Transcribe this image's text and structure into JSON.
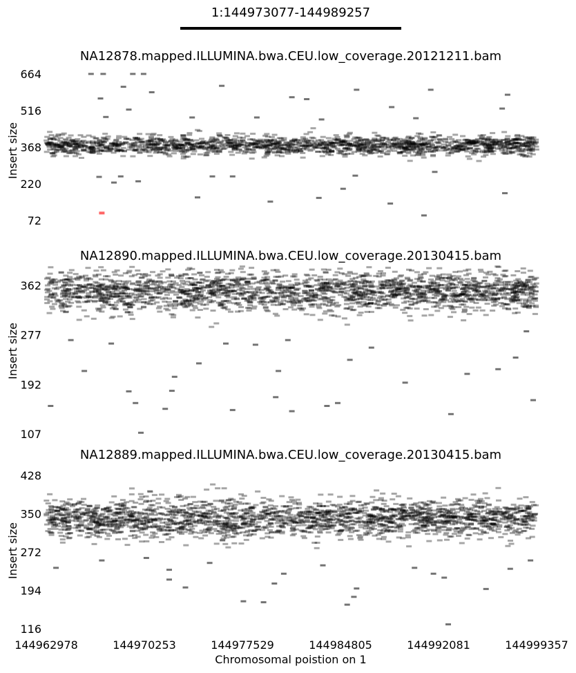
{
  "region": {
    "label": "1:144973077-144989257",
    "start": 144973077,
    "end": 144989257
  },
  "chart_data": {
    "type": "scatter",
    "xlabel": "Chromosomal poistion on 1",
    "xlim": [
      144962978,
      144999357
    ],
    "xticks": [
      144962978,
      144970253,
      144977529,
      144984805,
      144992081,
      144999357
    ],
    "xtick_labels": [
      "144962978",
      "144970253",
      "144977529",
      "144984805",
      "144992081",
      "144999357"
    ],
    "panels": [
      {
        "title": "NA12878.mapped.ILLUMINA.bwa.CEU.low_coverage.20121211.bam",
        "ylabel": "Insert size",
        "ylim": [
          72,
          664
        ],
        "yticks": [
          "72",
          "220",
          "368",
          "516",
          "664"
        ],
        "band": {
          "center": 375,
          "spread": 20
        },
        "density": 1700,
        "outliers": [
          {
            "x": 144966300,
            "y": 664
          },
          {
            "x": 144967200,
            "y": 664
          },
          {
            "x": 144969400,
            "y": 664
          },
          {
            "x": 144970200,
            "y": 664
          },
          {
            "x": 144968700,
            "y": 612
          },
          {
            "x": 144970800,
            "y": 590
          },
          {
            "x": 144967000,
            "y": 565
          },
          {
            "x": 144969100,
            "y": 520
          },
          {
            "x": 144976000,
            "y": 616
          },
          {
            "x": 144981200,
            "y": 570
          },
          {
            "x": 144982300,
            "y": 562
          },
          {
            "x": 144986000,
            "y": 600
          },
          {
            "x": 144988600,
            "y": 530
          },
          {
            "x": 144991500,
            "y": 600
          },
          {
            "x": 144997200,
            "y": 580
          },
          {
            "x": 144996800,
            "y": 524
          },
          {
            "x": 144967400,
            "y": 490
          },
          {
            "x": 144973800,
            "y": 488
          },
          {
            "x": 144978600,
            "y": 488
          },
          {
            "x": 144983400,
            "y": 480
          },
          {
            "x": 144990400,
            "y": 485
          },
          {
            "x": 144966900,
            "y": 248
          },
          {
            "x": 144968500,
            "y": 250
          },
          {
            "x": 144969800,
            "y": 230
          },
          {
            "x": 144975300,
            "y": 250
          },
          {
            "x": 144976800,
            "y": 250
          },
          {
            "x": 144985900,
            "y": 253
          },
          {
            "x": 144991800,
            "y": 268
          },
          {
            "x": 144985000,
            "y": 200
          },
          {
            "x": 144968000,
            "y": 225
          },
          {
            "x": 144974200,
            "y": 165
          },
          {
            "x": 144979600,
            "y": 148
          },
          {
            "x": 144983200,
            "y": 163
          },
          {
            "x": 144988500,
            "y": 140
          },
          {
            "x": 144997000,
            "y": 182
          },
          {
            "x": 144991000,
            "y": 92
          }
        ],
        "highlight": [
          {
            "x": 144967100,
            "y": 102,
            "color": "#ff0000"
          }
        ]
      },
      {
        "title": "NA12890.mapped.ILLUMINA.bwa.CEU.low_coverage.20130415.bam",
        "ylabel": "Insert size",
        "ylim": [
          107,
          395
        ],
        "yticks": [
          "107",
          "192",
          "277",
          "362"
        ],
        "band": {
          "center": 352,
          "spread": 18
        },
        "density": 2100,
        "outliers": [
          {
            "x": 144963300,
            "y": 155
          },
          {
            "x": 144965800,
            "y": 215
          },
          {
            "x": 144964800,
            "y": 268
          },
          {
            "x": 144967800,
            "y": 262
          },
          {
            "x": 144969100,
            "y": 180
          },
          {
            "x": 144969600,
            "y": 160
          },
          {
            "x": 144970000,
            "y": 109
          },
          {
            "x": 144972500,
            "y": 205
          },
          {
            "x": 144972300,
            "y": 181
          },
          {
            "x": 144971800,
            "y": 150
          },
          {
            "x": 144974300,
            "y": 228
          },
          {
            "x": 144976800,
            "y": 148
          },
          {
            "x": 144980000,
            "y": 170
          },
          {
            "x": 144981200,
            "y": 146
          },
          {
            "x": 144980200,
            "y": 215
          },
          {
            "x": 144983800,
            "y": 155
          },
          {
            "x": 144984600,
            "y": 160
          },
          {
            "x": 144985500,
            "y": 234
          },
          {
            "x": 144989600,
            "y": 195
          },
          {
            "x": 144993000,
            "y": 141
          },
          {
            "x": 144994200,
            "y": 210
          },
          {
            "x": 144996500,
            "y": 218
          },
          {
            "x": 144997800,
            "y": 238
          },
          {
            "x": 144999100,
            "y": 165
          },
          {
            "x": 144976300,
            "y": 262
          },
          {
            "x": 144978500,
            "y": 260
          },
          {
            "x": 144980900,
            "y": 268
          },
          {
            "x": 144987100,
            "y": 255
          },
          {
            "x": 144998600,
            "y": 283
          }
        ],
        "highlight": []
      },
      {
        "title": "NA12889.mapped.ILLUMINA.bwa.CEU.low_coverage.20130415.bam",
        "ylabel": "Insert size",
        "ylim": [
          116,
          428
        ],
        "yticks": [
          "116",
          "194",
          "272",
          "350",
          "428"
        ],
        "band": {
          "center": 340,
          "spread": 20
        },
        "density": 2100,
        "outliers": [
          {
            "x": 144963700,
            "y": 240
          },
          {
            "x": 144967100,
            "y": 255
          },
          {
            "x": 144970400,
            "y": 260
          },
          {
            "x": 144972100,
            "y": 236
          },
          {
            "x": 144973300,
            "y": 200
          },
          {
            "x": 144972100,
            "y": 216
          },
          {
            "x": 144975100,
            "y": 250
          },
          {
            "x": 144977600,
            "y": 172
          },
          {
            "x": 144979100,
            "y": 170
          },
          {
            "x": 144979900,
            "y": 208
          },
          {
            "x": 144980600,
            "y": 228
          },
          {
            "x": 144983500,
            "y": 245
          },
          {
            "x": 144985300,
            "y": 165
          },
          {
            "x": 144985800,
            "y": 181
          },
          {
            "x": 144986000,
            "y": 198
          },
          {
            "x": 144990300,
            "y": 240
          },
          {
            "x": 144991700,
            "y": 228
          },
          {
            "x": 144992500,
            "y": 220
          },
          {
            "x": 144992800,
            "y": 125
          },
          {
            "x": 144995600,
            "y": 197
          },
          {
            "x": 144997400,
            "y": 238
          },
          {
            "x": 144998900,
            "y": 255
          }
        ],
        "highlight": []
      }
    ]
  },
  "colors": {
    "point": "#000000",
    "highlight": "#ff0000",
    "region_bar": "#000000"
  }
}
